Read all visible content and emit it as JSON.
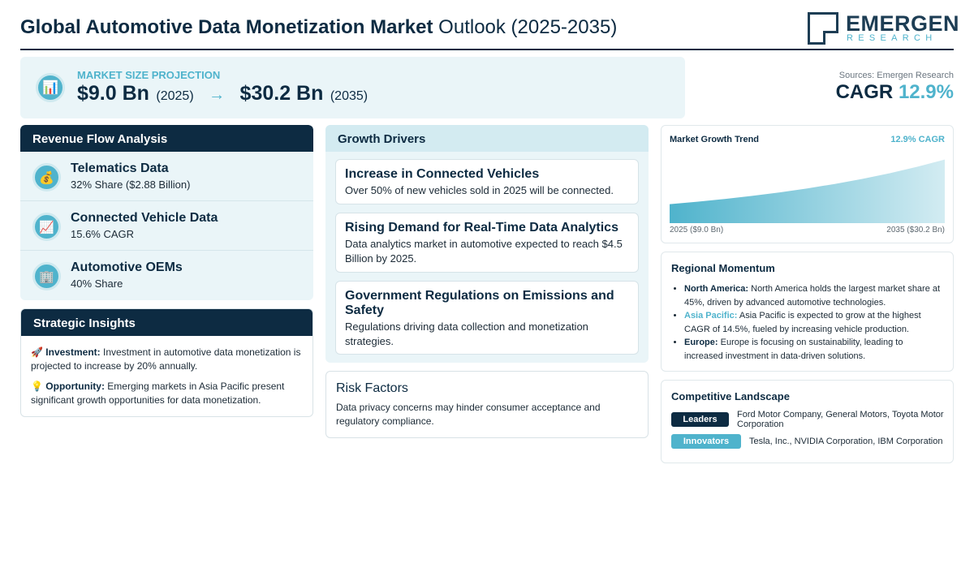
{
  "header": {
    "title_bold": "Global Automotive Data Monetization Market",
    "title_light": "Outlook (2025-2035)",
    "logo_name": "EMERGEN",
    "logo_sub": "RESEARCH"
  },
  "market_size": {
    "label": "MARKET SIZE PROJECTION",
    "icon": "bar-chart-icon",
    "start_value": "$9.0 Bn",
    "start_year": "(2025)",
    "arrow": "→",
    "end_value": "$30.2 Bn",
    "end_year": "(2035)"
  },
  "summary": {
    "sources": "Sources: Emergen Research",
    "cagr_label": "CAGR",
    "cagr_value": "12.9%"
  },
  "revenue_flow": {
    "title": "Revenue Flow Analysis",
    "items": [
      {
        "icon": "money-bag-icon",
        "glyph": "💰",
        "title": "Telematics Data",
        "subtitle": "32% Share ($2.88 Billion)"
      },
      {
        "icon": "chart-increasing-icon",
        "glyph": "📈",
        "title": "Connected Vehicle Data",
        "subtitle": "15.6% CAGR"
      },
      {
        "icon": "office-building-icon",
        "glyph": "🏢",
        "title": "Automotive OEMs",
        "subtitle": "40% Share"
      }
    ]
  },
  "strategic_insights": {
    "title": "Strategic Insights",
    "items": [
      {
        "icon": "rocket-icon",
        "glyph": "🚀",
        "label": "Investment:",
        "text": "Investment in automotive data monetization is projected to increase by 20% annually."
      },
      {
        "icon": "light-bulb-icon",
        "glyph": "💡",
        "label": "Opportunity:",
        "text": "Emerging markets in Asia Pacific present significant growth opportunities for data monetization."
      }
    ]
  },
  "growth_drivers": {
    "title": "Growth Drivers",
    "items": [
      {
        "title": "Increase in Connected Vehicles",
        "text": "Over 50% of new vehicles sold in 2025 will be connected."
      },
      {
        "title": "Rising Demand for Real-Time Data Analytics",
        "text": "Data analytics market in automotive expected to reach $4.5 Billion by 2025."
      },
      {
        "title": "Government Regulations on Emissions and Safety",
        "text": "Regulations driving data collection and monetization strategies."
      }
    ]
  },
  "risk_factors": {
    "title": "Risk Factors",
    "text": "Data privacy concerns may hinder consumer acceptance and regulatory compliance."
  },
  "growth_trend": {
    "title": "Market Growth Trend",
    "cagr": "12.9% CAGR",
    "start_label": "2025 ($9.0 Bn)",
    "end_label": "2035 ($30.2 Bn)",
    "fill_color": "#4fb3cc"
  },
  "chart_data": {
    "type": "area",
    "x": [
      2025,
      2035
    ],
    "values": [
      9.0,
      30.2
    ],
    "title": "Market Growth Trend",
    "xlabel": "",
    "ylabel": "",
    "grid": false
  },
  "regional": {
    "title": "Regional Momentum",
    "items": [
      {
        "region": "North America:",
        "text": "North America holds the largest market share at 45%, driven by advanced automotive technologies.",
        "accent": false
      },
      {
        "region": "Asia Pacific:",
        "text": "Asia Pacific is expected to grow at the highest CAGR of 14.5%, fueled by increasing vehicle production.",
        "accent": true
      },
      {
        "region": "Europe:",
        "text": "Europe is focusing on sustainability, leading to increased investment in data-driven solutions.",
        "accent": false
      }
    ]
  },
  "competitive": {
    "title": "Competitive Landscape",
    "leaders_label": "Leaders",
    "leaders_text": "Ford Motor Company, General Motors, Toyota Motor Corporation",
    "innovators_label": "Innovators",
    "innovators_text": "Tesla, Inc., NVIDIA Corporation, IBM Corporation"
  },
  "colors": {
    "navy": "#0d2b42",
    "accent": "#4fb3cc",
    "panel_bg": "#eaf5f8"
  }
}
